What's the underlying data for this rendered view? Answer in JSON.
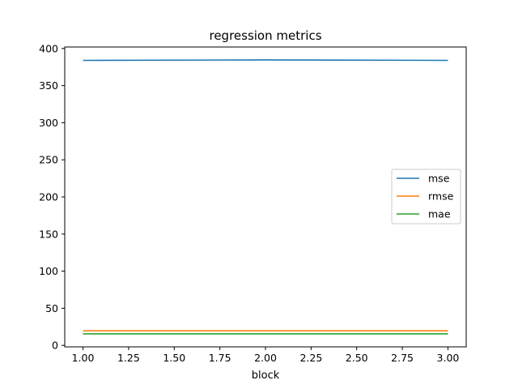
{
  "chart_data": {
    "type": "line",
    "title": "regression metrics",
    "xlabel": "block",
    "ylabel": "",
    "x": [
      1,
      2,
      3
    ],
    "xlim": [
      0.9,
      3.1
    ],
    "ylim": [
      -2,
      402
    ],
    "x_ticks": [
      "1.00",
      "1.25",
      "1.50",
      "1.75",
      "2.00",
      "2.25",
      "2.50",
      "2.75",
      "3.00"
    ],
    "y_ticks": [
      "0",
      "50",
      "100",
      "150",
      "200",
      "250",
      "300",
      "350",
      "400"
    ],
    "grid": false,
    "legend_position": "center-right",
    "series": [
      {
        "name": "mse",
        "color": "#1f77b4",
        "values": [
          384,
          384.6,
          384
        ]
      },
      {
        "name": "rmse",
        "color": "#ff7f0e",
        "values": [
          19.6,
          19.6,
          19.6
        ]
      },
      {
        "name": "mae",
        "color": "#2ca02c",
        "values": [
          15.5,
          15.5,
          15.5
        ]
      }
    ]
  }
}
